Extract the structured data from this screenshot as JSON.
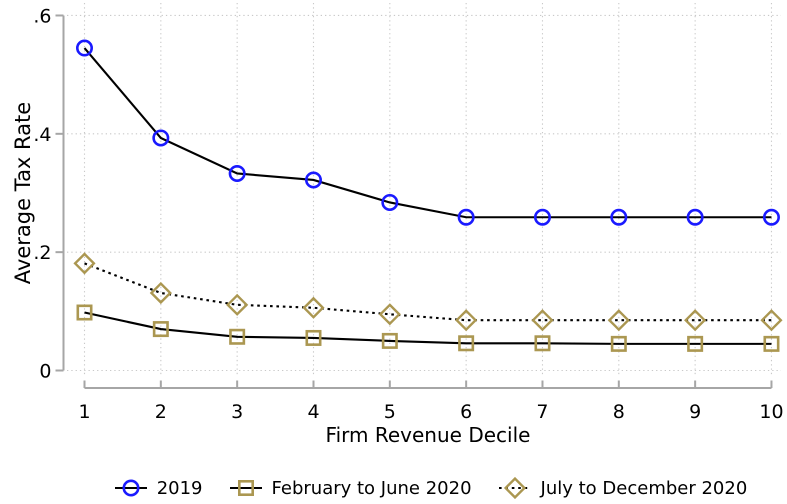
{
  "chart_data": {
    "type": "line",
    "title": "",
    "xlabel": "Firm Revenue Decile",
    "ylabel": "Average Tax Rate",
    "x": [
      1,
      2,
      3,
      4,
      5,
      6,
      7,
      8,
      9,
      10
    ],
    "xtick_labels": [
      "1",
      "2",
      "3",
      "4",
      "5",
      "6",
      "7",
      "8",
      "9",
      "10"
    ],
    "yticks": [
      0,
      0.2,
      0.4,
      0.6
    ],
    "ytick_labels": [
      "0",
      ".2",
      ".4",
      ".6"
    ],
    "ylim": [
      0,
      0.63
    ],
    "grid": true,
    "legend_position": "bottom",
    "series": [
      {
        "name": "2019",
        "marker": "circle",
        "marker_color": "#1a1aff",
        "line_color": "#000000",
        "line_style": "solid",
        "values": [
          0.545,
          0.393,
          0.333,
          0.322,
          0.284,
          0.259,
          0.259,
          0.259,
          0.259,
          0.259
        ]
      },
      {
        "name": "February to June 2020",
        "marker": "square",
        "marker_color": "#ab9751",
        "line_color": "#000000",
        "line_style": "solid",
        "values": [
          0.098,
          0.07,
          0.057,
          0.055,
          0.05,
          0.046,
          0.046,
          0.045,
          0.045,
          0.045
        ]
      },
      {
        "name": "July to December 2020",
        "marker": "diamond",
        "marker_color": "#ab9751",
        "line_color": "#000000",
        "line_style": "dotted",
        "values": [
          0.181,
          0.131,
          0.111,
          0.106,
          0.095,
          0.085,
          0.085,
          0.085,
          0.085,
          0.085
        ]
      }
    ],
    "colors": {
      "axis": "#a6a6a6",
      "grid": "#c9c9c9",
      "text": "#000000",
      "background": "#ffffff"
    }
  }
}
